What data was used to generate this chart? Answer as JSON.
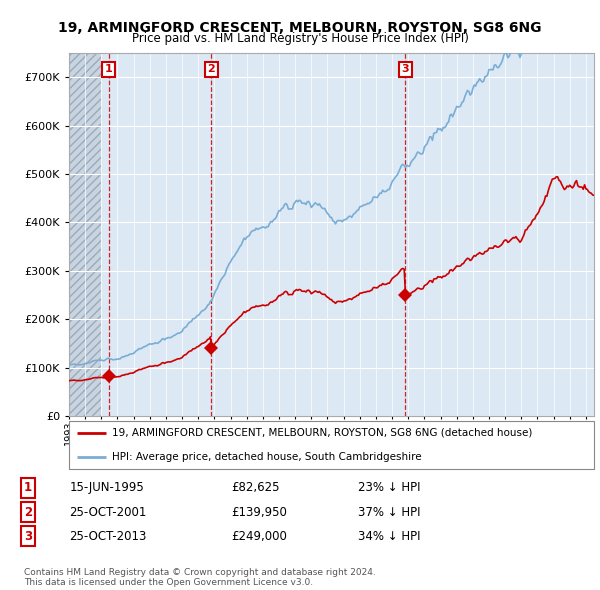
{
  "title": "19, ARMINGFORD CRESCENT, MELBOURN, ROYSTON, SG8 6NG",
  "subtitle": "Price paid vs. HM Land Registry's House Price Index (HPI)",
  "ylim": [
    0,
    750000
  ],
  "yticks": [
    0,
    100000,
    200000,
    300000,
    400000,
    500000,
    600000,
    700000
  ],
  "ytick_labels": [
    "£0",
    "£100K",
    "£200K",
    "£300K",
    "£400K",
    "£500K",
    "£600K",
    "£700K"
  ],
  "xlim_start": 1993.0,
  "xlim_end": 2025.5,
  "hatch_end": 1995.0,
  "transactions": [
    {
      "date_num": 1995.45,
      "price": 82625,
      "label": "1"
    },
    {
      "date_num": 2001.81,
      "price": 139950,
      "label": "2"
    },
    {
      "date_num": 2013.81,
      "price": 249000,
      "label": "3"
    }
  ],
  "transaction_color": "#cc0000",
  "hpi_color": "#7aadd4",
  "legend_line1": "19, ARMINGFORD CRESCENT, MELBOURN, ROYSTON, SG8 6NG (detached house)",
  "legend_line2": "HPI: Average price, detached house, South Cambridgeshire",
  "table_rows": [
    {
      "num": "1",
      "date": "15-JUN-1995",
      "price": "£82,625",
      "pct": "23% ↓ HPI"
    },
    {
      "num": "2",
      "date": "25-OCT-2001",
      "price": "£139,950",
      "pct": "37% ↓ HPI"
    },
    {
      "num": "3",
      "date": "25-OCT-2013",
      "price": "£249,000",
      "pct": "34% ↓ HPI"
    }
  ],
  "footer": "Contains HM Land Registry data © Crown copyright and database right 2024.\nThis data is licensed under the Open Government Licence v3.0.",
  "bg_color": "#ffffff",
  "plot_bg_color": "#dce9f5",
  "hatch_color": "#c8d4e0",
  "grid_color": "#ffffff"
}
